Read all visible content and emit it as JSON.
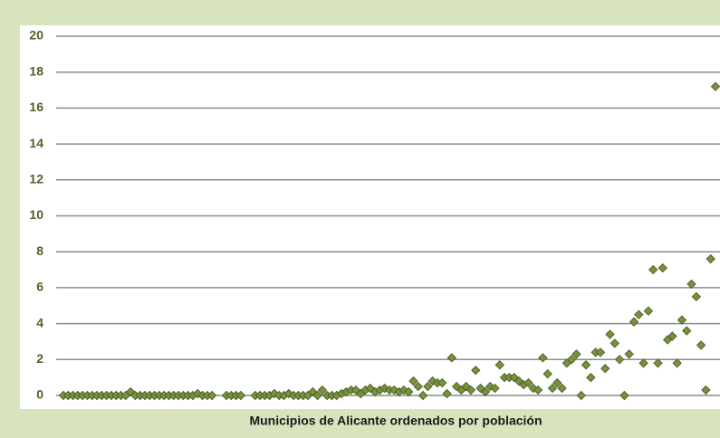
{
  "chart_data": {
    "type": "scatter",
    "x_label": "Municipios de Alicante ordenados  por población",
    "categories": [
      null,
      null,
      null,
      null,
      null,
      null,
      null,
      null,
      null,
      null,
      null,
      null,
      null,
      null,
      null,
      null,
      null,
      null,
      null,
      null,
      null,
      null,
      null,
      null,
      null,
      null,
      null,
      null,
      null,
      null,
      null,
      null,
      null,
      null,
      null,
      null,
      null,
      null,
      null,
      null,
      null,
      null,
      null,
      null,
      null,
      null,
      null,
      null,
      null,
      null,
      null,
      null,
      null,
      null,
      null,
      null,
      null,
      null,
      null,
      null,
      null,
      null,
      null,
      null,
      null,
      null,
      null,
      null,
      null,
      null,
      null,
      null,
      null,
      null,
      null,
      null,
      null,
      null,
      null,
      null,
      null,
      null,
      null,
      null,
      null,
      null,
      null,
      null,
      null,
      null,
      null,
      null,
      null,
      null,
      null,
      null,
      null,
      null,
      null,
      null,
      null,
      null,
      null,
      null,
      null,
      null,
      null,
      null,
      null,
      null,
      null,
      null,
      null,
      null,
      null,
      null,
      null,
      null,
      null,
      null,
      null,
      null,
      null,
      null,
      null,
      null,
      null,
      null,
      null,
      null,
      null,
      null,
      null,
      null,
      null,
      null,
      null
    ],
    "values": [
      0,
      0,
      0,
      0,
      0,
      0,
      0,
      0,
      0,
      0,
      0,
      0,
      0,
      0,
      0.2,
      0,
      0,
      0,
      0,
      0,
      0,
      0,
      0,
      0,
      0,
      0,
      0,
      0,
      0.1,
      0,
      0,
      0,
      null,
      null,
      0,
      0,
      0,
      0,
      null,
      null,
      0,
      0,
      0,
      0,
      0.1,
      0,
      0,
      0.1,
      0,
      0,
      0,
      0,
      0.2,
      0,
      0.3,
      0,
      0,
      0,
      0.1,
      0.2,
      0.3,
      0.3,
      0.1,
      0.3,
      0.4,
      0.2,
      0.3,
      0.4,
      0.3,
      0.3,
      0.2,
      0.3,
      0.2,
      0.8,
      0.5,
      0,
      0.5,
      0.8,
      0.7,
      0.7,
      0.1,
      2.1,
      0.5,
      0.3,
      0.5,
      0.3,
      1.4,
      0.4,
      0.2,
      0.5,
      0.4,
      1.7,
      1,
      1,
      1,
      0.8,
      0.6,
      0.7,
      0.4,
      0.3,
      2.1,
      1.2,
      0.4,
      0.7,
      0.4,
      1.8,
      2,
      2.3,
      0,
      1.7,
      1,
      2.4,
      2.4,
      1.5,
      3.4,
      2.9,
      2,
      0,
      2.3,
      4.1,
      4.5,
      1.8,
      4.7,
      7,
      1.8,
      7.1,
      3.1,
      3.3,
      1.8,
      4.2,
      3.6,
      6.2,
      5.5,
      2.8,
      0.3,
      7.6,
      17.2
    ],
    "color": "#77933c",
    "ylim": [
      0,
      20
    ],
    "yticks": [
      0,
      2,
      4,
      6,
      8,
      10,
      12,
      14,
      16,
      18,
      20
    ],
    "grid": true
  }
}
